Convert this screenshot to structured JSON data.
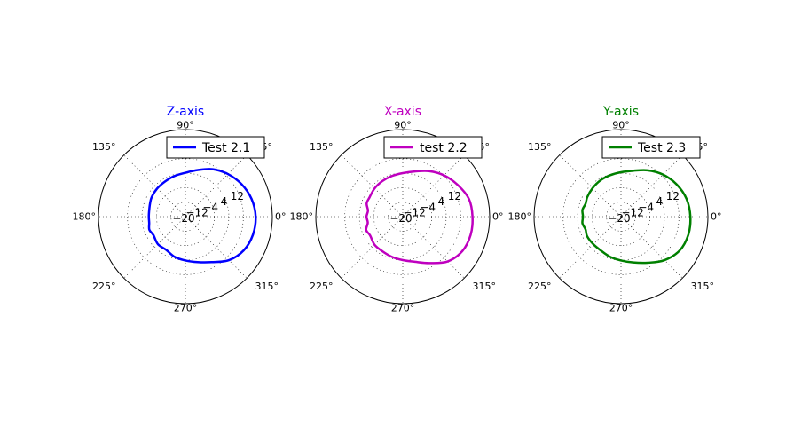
{
  "chart_data": [
    {
      "type": "line",
      "subtype": "polar",
      "title": "Z-axis",
      "title_color": "#0000ff",
      "color": "#0000ff",
      "rmin": -20,
      "rmax": 28,
      "r_ticks": [
        -20,
        -12,
        -4,
        4,
        12
      ],
      "r_tick_labels": [
        "−20",
        "−12",
        "−4",
        "4",
        "12"
      ],
      "theta_ticks": [
        0,
        45,
        90,
        135,
        180,
        225,
        270,
        315
      ],
      "theta_tick_labels": [
        "0°",
        "45°",
        "90°",
        "135°",
        "180°",
        "225°",
        "270°",
        "315°"
      ],
      "grid": true,
      "legend_position": "top-right",
      "series": [
        {
          "name": "Test 2.1",
          "theta": [
            0,
            15,
            30,
            45,
            60,
            75,
            90,
            105,
            120,
            135,
            150,
            160,
            170,
            180,
            190,
            200,
            210,
            225,
            240,
            255,
            270,
            285,
            300,
            315,
            330,
            345,
            360
          ],
          "r": [
            18.8,
            17.8,
            15.8,
            13.2,
            10.2,
            6.6,
            4.2,
            3.2,
            2.4,
            2.0,
            1.5,
            0.8,
            0.3,
            0.2,
            0.3,
            1.2,
            0.4,
            1.5,
            1.2,
            3.0,
            4.2,
            6.0,
            9.0,
            14.0,
            17.2,
            18.6,
            18.8
          ]
        }
      ]
    },
    {
      "type": "line",
      "subtype": "polar",
      "title": "X-axis",
      "title_color": "#bf00bf",
      "color": "#bf00bf",
      "rmin": -20,
      "rmax": 28,
      "r_ticks": [
        -20,
        -12,
        -4,
        4,
        12
      ],
      "r_tick_labels": [
        "−20",
        "−12",
        "−4",
        "4",
        "12"
      ],
      "theta_ticks": [
        0,
        45,
        90,
        135,
        180,
        225,
        270,
        315
      ],
      "theta_tick_labels": [
        "0°",
        "45°",
        "90°",
        "135°",
        "180°",
        "225°",
        "270°",
        "315°"
      ],
      "grid": true,
      "legend_position": "top-right",
      "series": [
        {
          "name": "test 2.2",
          "theta": [
            0,
            15,
            30,
            45,
            60,
            75,
            90,
            105,
            120,
            135,
            150,
            160,
            170,
            180,
            190,
            200,
            210,
            225,
            240,
            255,
            270,
            285,
            300,
            315,
            330,
            345,
            360
          ],
          "r": [
            18.5,
            17.8,
            15.0,
            12.2,
            9.0,
            5.8,
            4.0,
            3.2,
            2.6,
            2.0,
            1.2,
            1.2,
            -0.5,
            0.0,
            -0.4,
            1.5,
            0.8,
            2.0,
            2.2,
            3.0,
            4.0,
            5.8,
            9.6,
            15.0,
            18.0,
            18.8,
            18.5
          ]
        }
      ]
    },
    {
      "type": "line",
      "subtype": "polar",
      "title": "Y-axis",
      "title_color": "#008000",
      "color": "#008000",
      "rmin": -20,
      "rmax": 28,
      "r_ticks": [
        -20,
        -12,
        -4,
        4,
        12
      ],
      "r_tick_labels": [
        "−20",
        "−12",
        "−4",
        "4",
        "12"
      ],
      "theta_ticks": [
        0,
        45,
        90,
        135,
        180,
        225,
        270,
        315
      ],
      "theta_tick_labels": [
        "0°",
        "45°",
        "90°",
        "135°",
        "180°",
        "225°",
        "270°",
        "315°"
      ],
      "grid": true,
      "legend_position": "top-right",
      "series": [
        {
          "name": "Test 2.3",
          "theta": [
            0,
            15,
            30,
            45,
            60,
            75,
            90,
            105,
            120,
            135,
            150,
            160,
            170,
            180,
            190,
            200,
            210,
            225,
            240,
            255,
            270,
            285,
            300,
            315,
            330,
            345,
            360
          ],
          "r": [
            18.3,
            17.5,
            15.5,
            12.8,
            9.5,
            6.2,
            4.5,
            3.6,
            3.0,
            2.2,
            1.5,
            0.8,
            1.6,
            1.0,
            1.6,
            0.8,
            1.6,
            1.6,
            1.8,
            3.0,
            4.2,
            6.2,
            9.4,
            14.0,
            17.4,
            18.5,
            18.3
          ]
        }
      ]
    }
  ]
}
